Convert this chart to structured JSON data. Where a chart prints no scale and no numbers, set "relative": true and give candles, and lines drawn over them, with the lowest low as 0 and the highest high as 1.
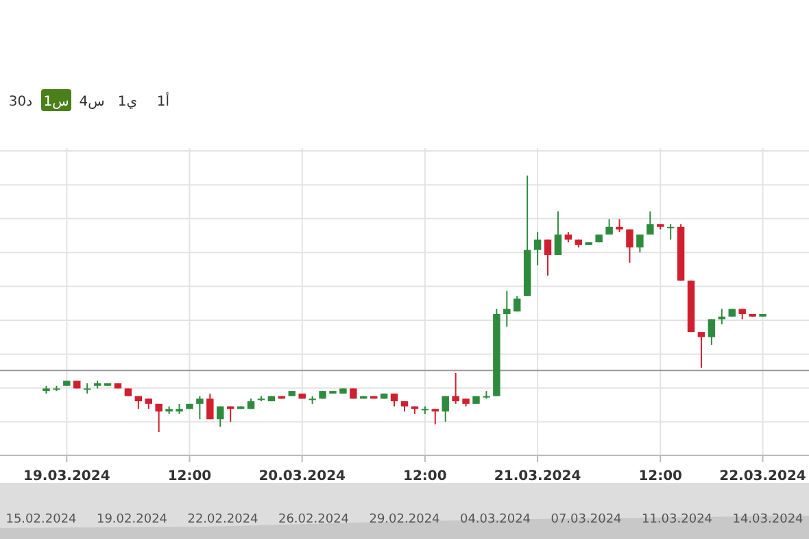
{
  "chart_data": {
    "type": "candlestick",
    "relative": true,
    "grid": true,
    "categories": [
      null,
      null,
      "19.03.2024",
      null,
      null,
      null,
      null,
      null,
      null,
      null,
      null,
      null,
      null,
      null,
      "12:00",
      null,
      null,
      null,
      null,
      null,
      null,
      null,
      null,
      null,
      null,
      "20.03.2024",
      null,
      null,
      null,
      null,
      null,
      null,
      null,
      null,
      null,
      null,
      null,
      "12:00",
      null,
      null,
      null,
      null,
      null,
      null,
      null,
      null,
      null,
      null,
      "21.03.2024",
      null,
      null,
      null,
      null,
      null,
      null,
      null,
      null,
      null,
      null,
      null,
      "12:00",
      null,
      null,
      null,
      null,
      null,
      null,
      null,
      null,
      null,
      "22.03.2024"
    ],
    "ohlc": [
      [
        0.16,
        0.18,
        0.15,
        0.17
      ],
      [
        0.17,
        0.18,
        0.16,
        0.17
      ],
      [
        0.18,
        0.2,
        0.18,
        0.2
      ],
      [
        0.2,
        0.2,
        0.17,
        0.17
      ],
      [
        0.17,
        0.19,
        0.15,
        0.17
      ],
      [
        0.18,
        0.2,
        0.17,
        0.19
      ],
      [
        0.18,
        0.19,
        0.18,
        0.19
      ],
      [
        0.19,
        0.19,
        0.17,
        0.17
      ],
      [
        0.17,
        0.17,
        0.14,
        0.14
      ],
      [
        0.14,
        0.14,
        0.09,
        0.12
      ],
      [
        0.13,
        0.13,
        0.09,
        0.11
      ],
      [
        0.11,
        0.11,
        0,
        0.08
      ],
      [
        0.08,
        0.1,
        0.07,
        0.09
      ],
      [
        0.08,
        0.11,
        0.07,
        0.09
      ],
      [
        0.09,
        0.11,
        0.09,
        0.11
      ],
      [
        0.11,
        0.14,
        0.05,
        0.13
      ],
      [
        0.13,
        0.15,
        0.05,
        0.05
      ],
      [
        0.05,
        0.1,
        0.02,
        0.1
      ],
      [
        0.1,
        0.1,
        0.04,
        0.09
      ],
      [
        0.09,
        0.1,
        0.09,
        0.1
      ],
      [
        0.09,
        0.13,
        0.09,
        0.12
      ],
      [
        0.13,
        0.14,
        0.12,
        0.13
      ],
      [
        0.12,
        0.14,
        0.12,
        0.14
      ],
      [
        0.14,
        0.14,
        0.13,
        0.13
      ],
      [
        0.14,
        0.16,
        0.14,
        0.16
      ],
      [
        0.15,
        0.15,
        0.13,
        0.13
      ],
      [
        0.13,
        0.14,
        0.11,
        0.13
      ],
      [
        0.13,
        0.16,
        0.13,
        0.16
      ],
      [
        0.15,
        0.16,
        0.15,
        0.16
      ],
      [
        0.15,
        0.17,
        0.15,
        0.17
      ],
      [
        0.17,
        0.17,
        0.13,
        0.13
      ],
      [
        0.13,
        0.14,
        0.13,
        0.14
      ],
      [
        0.14,
        0.14,
        0.13,
        0.13
      ],
      [
        0.13,
        0.15,
        0.13,
        0.15
      ],
      [
        0.15,
        0.15,
        0.1,
        0.12
      ],
      [
        0.12,
        0.12,
        0.08,
        0.1
      ],
      [
        0.1,
        0.1,
        0.07,
        0.09
      ],
      [
        0.09,
        0.1,
        0.07,
        0.09
      ],
      [
        0.09,
        0.09,
        0.03,
        0.08
      ],
      [
        0.08,
        0.14,
        0.04,
        0.14
      ],
      [
        0.14,
        0.23,
        0.11,
        0.12
      ],
      [
        0.13,
        0.13,
        0.1,
        0.11
      ],
      [
        0.11,
        0.14,
        0.11,
        0.14
      ],
      [
        0.14,
        0.16,
        0.13,
        0.14
      ],
      [
        0.14,
        0.48,
        0.14,
        0.46
      ],
      [
        0.46,
        0.55,
        0.41,
        0.48
      ],
      [
        0.47,
        0.53,
        0.47,
        0.52
      ],
      [
        0.53,
        1,
        0.53,
        0.71
      ],
      [
        0.71,
        0.78,
        0.65,
        0.75
      ],
      [
        0.75,
        0.75,
        0.61,
        0.69
      ],
      [
        0.69,
        0.86,
        0.69,
        0.77
      ],
      [
        0.77,
        0.78,
        0.74,
        0.75
      ],
      [
        0.75,
        0.75,
        0.72,
        0.73
      ],
      [
        0.73,
        0.74,
        0.73,
        0.74
      ],
      [
        0.74,
        0.77,
        0.74,
        0.77
      ],
      [
        0.77,
        0.83,
        0.77,
        0.8
      ],
      [
        0.8,
        0.83,
        0.78,
        0.79
      ],
      [
        0.79,
        0.79,
        0.66,
        0.72
      ],
      [
        0.72,
        0.77,
        0.7,
        0.77
      ],
      [
        0.77,
        0.86,
        0.77,
        0.81
      ],
      [
        0.81,
        0.81,
        0.79,
        0.8
      ],
      [
        0.8,
        0.81,
        0.75,
        0.8
      ],
      [
        0.8,
        0.81,
        0.59,
        0.59
      ],
      [
        0.59,
        0.59,
        0.39,
        0.39
      ],
      [
        0.39,
        0.39,
        0.25,
        0.37
      ],
      [
        0.37,
        0.44,
        0.34,
        0.44
      ],
      [
        0.44,
        0.48,
        0.42,
        0.45
      ],
      [
        0.45,
        0.48,
        0.45,
        0.48
      ],
      [
        0.48,
        0.48,
        0.44,
        0.46
      ],
      [
        0.46,
        0.46,
        0.45,
        0.45
      ],
      [
        0.45,
        0.46,
        0.45,
        0.46
      ]
    ],
    "ref_lines": [
      {
        "axis": "y",
        "value": 0.24,
        "color": "#999999"
      }
    ],
    "annotations": [
      "30د",
      "1س",
      "4س",
      "1ي",
      "1أ",
      "15.02.2024",
      "19.02.2024",
      "22.02.2024",
      "26.02.2024",
      "29.02.2024",
      "04.03.2024",
      "07.03.2024",
      "11.03.2024",
      "14.03.2024"
    ]
  }
}
